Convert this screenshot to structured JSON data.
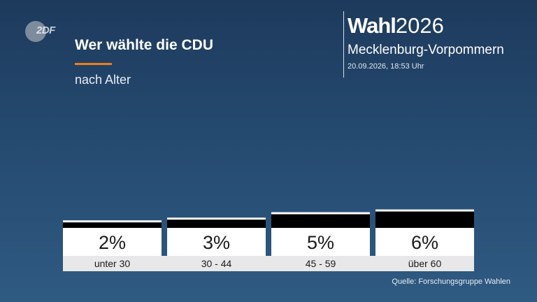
{
  "header": {
    "logo_text": "2DF",
    "title": "Wer wählte die CDU",
    "subtitle": "nach Alter",
    "brand_bold": "Wahl",
    "brand_year": "2026",
    "region": "Mecklenburg-Vorpommern",
    "timestamp": "20.09.2026, 18:53 Uhr"
  },
  "colors": {
    "accent": "#f07d1a",
    "bar": "#000000",
    "label_box": "#ffffff",
    "category_box": "#e8e8e8"
  },
  "chart_data": {
    "type": "bar",
    "title": "Wer wählte die CDU",
    "subtitle": "nach Alter",
    "categories": [
      "unter 30",
      "30 - 44",
      "45 - 59",
      "über 60"
    ],
    "values": [
      2,
      3,
      5,
      6
    ],
    "value_labels": [
      "2%",
      "3%",
      "5%",
      "6%"
    ],
    "unit": "%",
    "grid": false,
    "legend": "none"
  },
  "footer": {
    "source": "Quelle: Forschungsgruppe Wahlen"
  }
}
